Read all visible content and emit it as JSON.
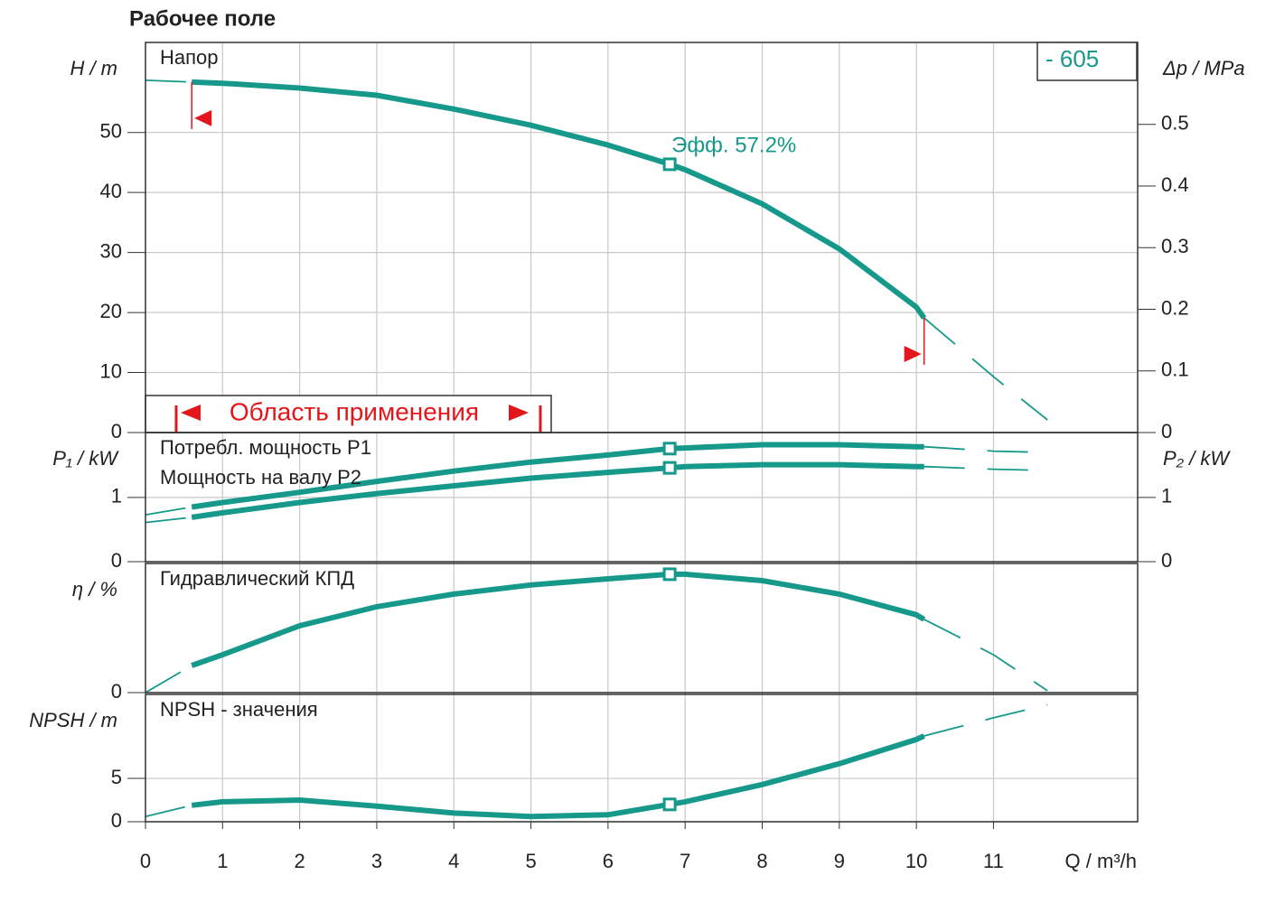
{
  "title": "Рабочее поле",
  "model": "- 605",
  "chart_data": [
    {
      "type": "line",
      "title": "Напор",
      "y_label": "H / m",
      "y2_label": "Δp / MPa",
      "x": [
        0,
        0.6,
        1,
        2,
        3,
        4,
        5,
        6,
        6.8,
        7,
        8,
        9,
        10,
        10.1,
        11,
        11.7
      ],
      "xlim": [
        0,
        12.87
      ],
      "ylim": [
        0,
        65
      ],
      "yticks": [
        0,
        10,
        20,
        30,
        40,
        50
      ],
      "y2lim": [
        0,
        0.633
      ],
      "y2ticks": [
        0,
        0.1,
        0.2,
        0.3,
        0.4,
        0.5
      ],
      "duty_x": 6.8,
      "annotation": "Эфф.  57.2%",
      "application_range": [
        0.6,
        10.1
      ],
      "application_label": "Область применения",
      "series": [
        {
          "color": "#16998a",
          "style": "solid",
          "values": [
            null,
            58.4,
            58.2,
            57.4,
            56.2,
            53.9,
            51.2,
            47.9,
            44.7,
            43.8,
            38.1,
            30.6,
            20.9,
            19.1,
            null,
            null
          ]
        },
        {
          "color": "#16998a",
          "style": "dashed",
          "values": [
            58.7,
            58.4,
            null,
            null,
            null,
            null,
            null,
            null,
            null,
            null,
            null,
            null,
            null,
            19.1,
            9.3,
            2.1
          ]
        }
      ]
    },
    {
      "type": "line",
      "y_label": "P₁ / kW",
      "y2_label": "P₂ / kW",
      "x": [
        0,
        0.6,
        1,
        2,
        3,
        4,
        5,
        6,
        6.8,
        7,
        8,
        9,
        10,
        10.1,
        11,
        11.7
      ],
      "xlim": [
        0,
        12.87
      ],
      "ylim": [
        0,
        2.01
      ],
      "yticks": [
        0,
        1
      ],
      "y2lim": [
        0,
        2.01
      ],
      "y2ticks": [
        0,
        1
      ],
      "duty_x": 6.8,
      "series": [
        {
          "name": "Потребл. мощность P1",
          "color": "#16998a",
          "style": "solid",
          "values": [
            null,
            0.85,
            0.92,
            1.08,
            1.25,
            1.41,
            1.55,
            1.66,
            1.76,
            1.77,
            1.82,
            1.82,
            1.79,
            1.79,
            null,
            null
          ]
        },
        {
          "color": "#16998a",
          "style": "dashed",
          "values": [
            0.73,
            0.85,
            null,
            null,
            null,
            null,
            null,
            null,
            null,
            null,
            null,
            null,
            null,
            1.79,
            1.72,
            1.7
          ]
        },
        {
          "name": "Мощность на валу P2",
          "color": "#16998a",
          "style": "solid",
          "values": [
            null,
            0.69,
            0.76,
            0.92,
            1.06,
            1.18,
            1.3,
            1.39,
            1.46,
            1.48,
            1.51,
            1.51,
            1.48,
            1.48,
            null,
            null
          ]
        },
        {
          "color": "#16998a",
          "style": "dashed",
          "values": [
            0.61,
            0.69,
            null,
            null,
            null,
            null,
            null,
            null,
            null,
            null,
            null,
            null,
            null,
            1.48,
            1.44,
            1.42
          ]
        }
      ]
    },
    {
      "type": "line",
      "title": "Гидравлический КПД",
      "y_label": "η / %",
      "x": [
        0,
        0.6,
        1,
        2,
        3,
        4,
        5,
        6,
        6.8,
        7,
        8,
        9,
        10,
        10.1,
        11,
        11.7
      ],
      "xlim": [
        0,
        12.87
      ],
      "ylim": [
        0,
        62.4
      ],
      "yticks": [
        0
      ],
      "duty_x": 6.8,
      "series": [
        {
          "color": "#16998a",
          "style": "solid",
          "values": [
            null,
            13.1,
            18.3,
            32.3,
            41.5,
            47.6,
            52,
            55,
            57.2,
            57.2,
            54.1,
            47.6,
            37.6,
            35.4,
            null,
            null
          ]
        },
        {
          "color": "#16998a",
          "style": "dashed",
          "values": [
            0,
            13.1,
            null,
            null,
            null,
            null,
            null,
            null,
            null,
            null,
            null,
            null,
            null,
            35.4,
            18.3,
            0.9
          ]
        }
      ]
    },
    {
      "type": "line",
      "title": "NPSH - значения",
      "y_label": "NPSH  / m",
      "x_label": "Q / m³/h",
      "x": [
        0,
        0.6,
        1,
        2,
        3,
        4,
        5,
        6,
        6.8,
        7,
        8,
        9,
        10,
        10.1,
        11,
        11.7
      ],
      "xlim": [
        0,
        12.87
      ],
      "xticks": [
        0,
        1,
        2,
        3,
        4,
        5,
        6,
        7,
        8,
        9,
        10,
        11
      ],
      "ylim": [
        0,
        14.7
      ],
      "yticks": [
        0,
        5
      ],
      "duty_x": 6.8,
      "series": [
        {
          "color": "#16998a",
          "style": "solid",
          "values": [
            null,
            1.9,
            2.3,
            2.5,
            1.8,
            1.0,
            0.6,
            0.8,
            2.0,
            2.3,
            4.3,
            6.7,
            9.5,
            9.9,
            null,
            null
          ]
        },
        {
          "color": "#16998a",
          "style": "dashed",
          "values": [
            0.6,
            1.9,
            null,
            null,
            null,
            null,
            null,
            null,
            null,
            null,
            null,
            null,
            null,
            9.9,
            12.0,
            13.5
          ]
        }
      ]
    }
  ]
}
